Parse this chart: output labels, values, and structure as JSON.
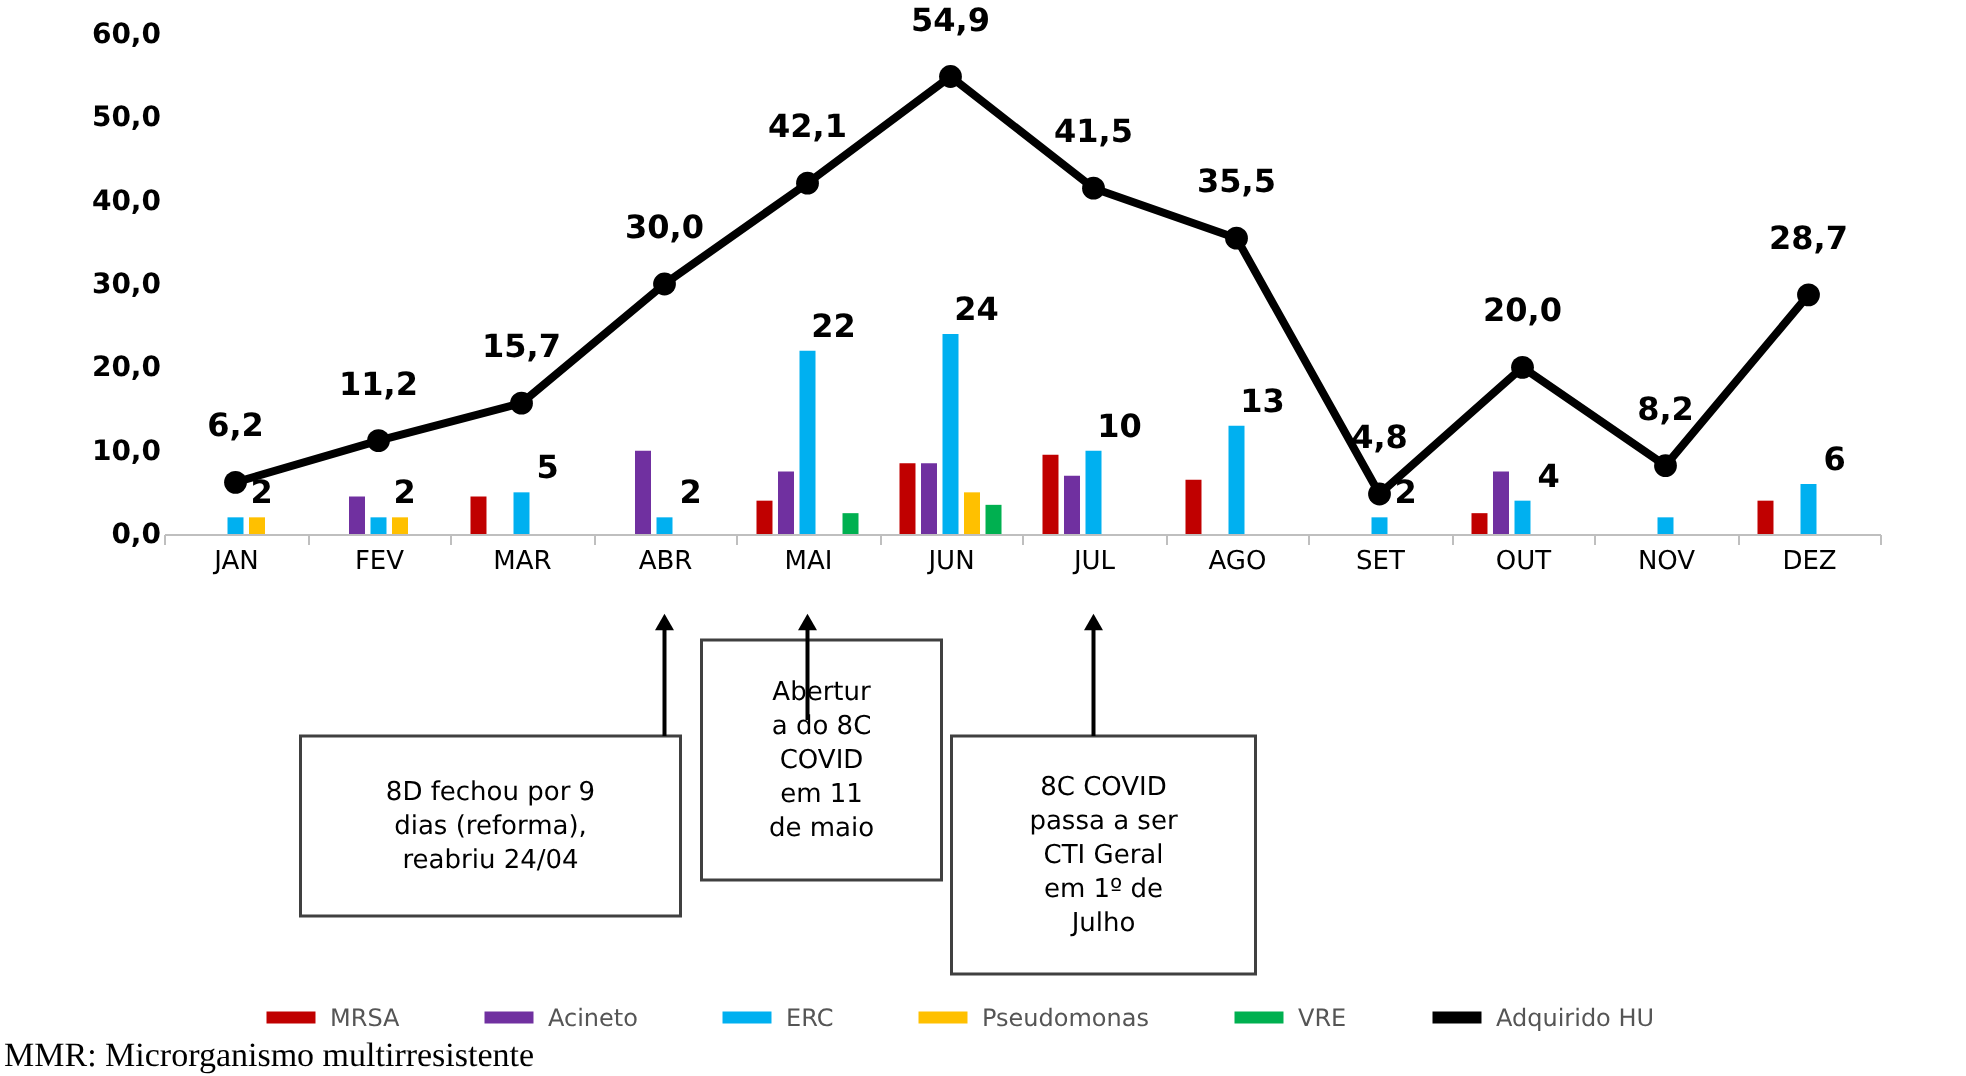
{
  "chart_data": {
    "type": "bar",
    "categories": [
      "JAN",
      "FEV",
      "MAR",
      "ABR",
      "MAI",
      "JUN",
      "JUL",
      "AGO",
      "SET",
      "OUT",
      "NOV",
      "DEZ"
    ],
    "series": [
      {
        "name": "MRSA",
        "color": "#c00000",
        "values": [
          null,
          null,
          4.5,
          null,
          4,
          8.5,
          9.5,
          6.5,
          null,
          2.5,
          null,
          4
        ]
      },
      {
        "name": "Acineto",
        "color": "#7030a0",
        "values": [
          null,
          4.5,
          null,
          10,
          7.5,
          8.5,
          7,
          null,
          null,
          7.5,
          null,
          null
        ]
      },
      {
        "name": "ERC",
        "color": "#00b0f0",
        "values": [
          2,
          2,
          5,
          2,
          22,
          24,
          10,
          13,
          2,
          4,
          2,
          6
        ],
        "value_labels": [
          "2",
          "2",
          "5",
          "2",
          "22",
          "24",
          "10",
          "13",
          "2",
          "4",
          null,
          "6"
        ]
      },
      {
        "name": "Pseudomonas",
        "color": "#ffc000",
        "values": [
          2,
          2,
          null,
          null,
          null,
          5,
          null,
          null,
          null,
          null,
          null,
          null
        ]
      },
      {
        "name": "VRE",
        "color": "#00b050",
        "values": [
          null,
          null,
          null,
          null,
          2.5,
          3.5,
          null,
          null,
          null,
          null,
          null,
          null
        ]
      },
      {
        "name": "Adquirido HU",
        "type": "line",
        "color": "#000000",
        "marker": "circle",
        "values": [
          6.2,
          11.2,
          15.7,
          30.0,
          42.1,
          54.9,
          41.5,
          35.5,
          4.8,
          20.0,
          8.2,
          28.7
        ],
        "value_labels": [
          "6,2",
          "11,2",
          "15,7",
          "30,0",
          "42,1",
          "54,9",
          "41,5",
          "35,5",
          "4,8",
          "20,0",
          "8,2",
          "28,7"
        ]
      }
    ],
    "ylim": [
      0,
      60
    ],
    "yticks": [
      {
        "value": 0,
        "label": "0,0"
      },
      {
        "value": 10,
        "label": "10,0"
      },
      {
        "value": 20,
        "label": "20,0"
      },
      {
        "value": 30,
        "label": "30,0"
      },
      {
        "value": 40,
        "label": "40,0"
      },
      {
        "value": 50,
        "label": "50,0"
      },
      {
        "value": 60,
        "label": "60,0"
      }
    ],
    "grid": false,
    "legend": "bottom",
    "annotations": [
      "8D fechou por 9\ndias (reforma),\nreabriu 24/04",
      "Abertur\na do 8C\nCOVID\nem 11\nde maio",
      "8C COVID\npassa a ser\nCTI Geral\nem 1º de\nJulho",
      "MMR: Microrganismo multirresistente"
    ]
  }
}
